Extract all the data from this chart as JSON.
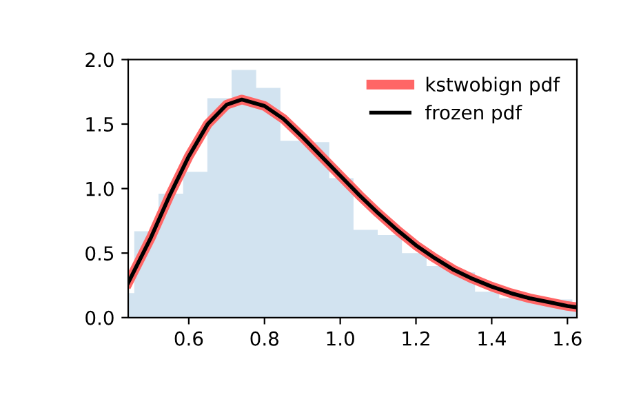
{
  "chart_data": {
    "type": "histogram",
    "xlim": [
      0.44,
      1.625
    ],
    "ylim": [
      0,
      2.0
    ],
    "xticks": [
      {
        "value": 0.6,
        "label": "0.6"
      },
      {
        "value": 0.8,
        "label": "0.8"
      },
      {
        "value": 1.0,
        "label": "1.0"
      },
      {
        "value": 1.2,
        "label": "1.2"
      },
      {
        "value": 1.4,
        "label": "1.4"
      },
      {
        "value": 1.6,
        "label": "1.6"
      }
    ],
    "yticks": [
      {
        "value": 0,
        "label": "0.0"
      },
      {
        "value": 0.5,
        "label": "0.5"
      },
      {
        "value": 1.0,
        "label": "1.0"
      },
      {
        "value": 1.5,
        "label": "1.5"
      },
      {
        "value": 2.0,
        "label": "2.0"
      }
    ],
    "bins": [
      0.44,
      0.456,
      0.52,
      0.585,
      0.649,
      0.713,
      0.778,
      0.842,
      0.906,
      0.971,
      1.035,
      1.099,
      1.163,
      1.228,
      1.292,
      1.356,
      1.42,
      1.485,
      1.549,
      1.613,
      1.625
    ],
    "values": [
      0.19,
      0.67,
      0.96,
      1.13,
      1.7,
      1.92,
      1.78,
      1.37,
      1.36,
      1.08,
      0.68,
      0.64,
      0.5,
      0.4,
      0.35,
      0.2,
      0.15,
      0.13,
      0.14,
      0.12
    ],
    "color": "#d2e3f0",
    "series": [
      {
        "name": "kstwobign pdf",
        "type": "line",
        "color": "#ff6666",
        "x": [
          0.44,
          0.5,
          0.55,
          0.6,
          0.65,
          0.7,
          0.74,
          0.8,
          0.85,
          0.9,
          0.95,
          1.0,
          1.05,
          1.1,
          1.15,
          1.2,
          1.25,
          1.3,
          1.35,
          1.4,
          1.45,
          1.5,
          1.55,
          1.6,
          1.625
        ],
        "values": [
          0.27,
          0.62,
          0.95,
          1.25,
          1.5,
          1.65,
          1.69,
          1.64,
          1.54,
          1.4,
          1.25,
          1.1,
          0.95,
          0.81,
          0.68,
          0.56,
          0.46,
          0.37,
          0.3,
          0.24,
          0.19,
          0.15,
          0.12,
          0.09,
          0.08
        ]
      },
      {
        "name": "frozen pdf",
        "type": "line",
        "color": "#000000",
        "x": [
          0.44,
          0.5,
          0.55,
          0.6,
          0.65,
          0.7,
          0.74,
          0.8,
          0.85,
          0.9,
          0.95,
          1.0,
          1.05,
          1.1,
          1.15,
          1.2,
          1.25,
          1.3,
          1.35,
          1.4,
          1.45,
          1.5,
          1.55,
          1.6,
          1.625
        ],
        "values": [
          0.27,
          0.62,
          0.95,
          1.25,
          1.5,
          1.65,
          1.69,
          1.64,
          1.54,
          1.4,
          1.25,
          1.1,
          0.95,
          0.81,
          0.68,
          0.56,
          0.46,
          0.37,
          0.3,
          0.24,
          0.19,
          0.15,
          0.12,
          0.09,
          0.08
        ]
      }
    ],
    "legend": "top right",
    "grid": false
  }
}
